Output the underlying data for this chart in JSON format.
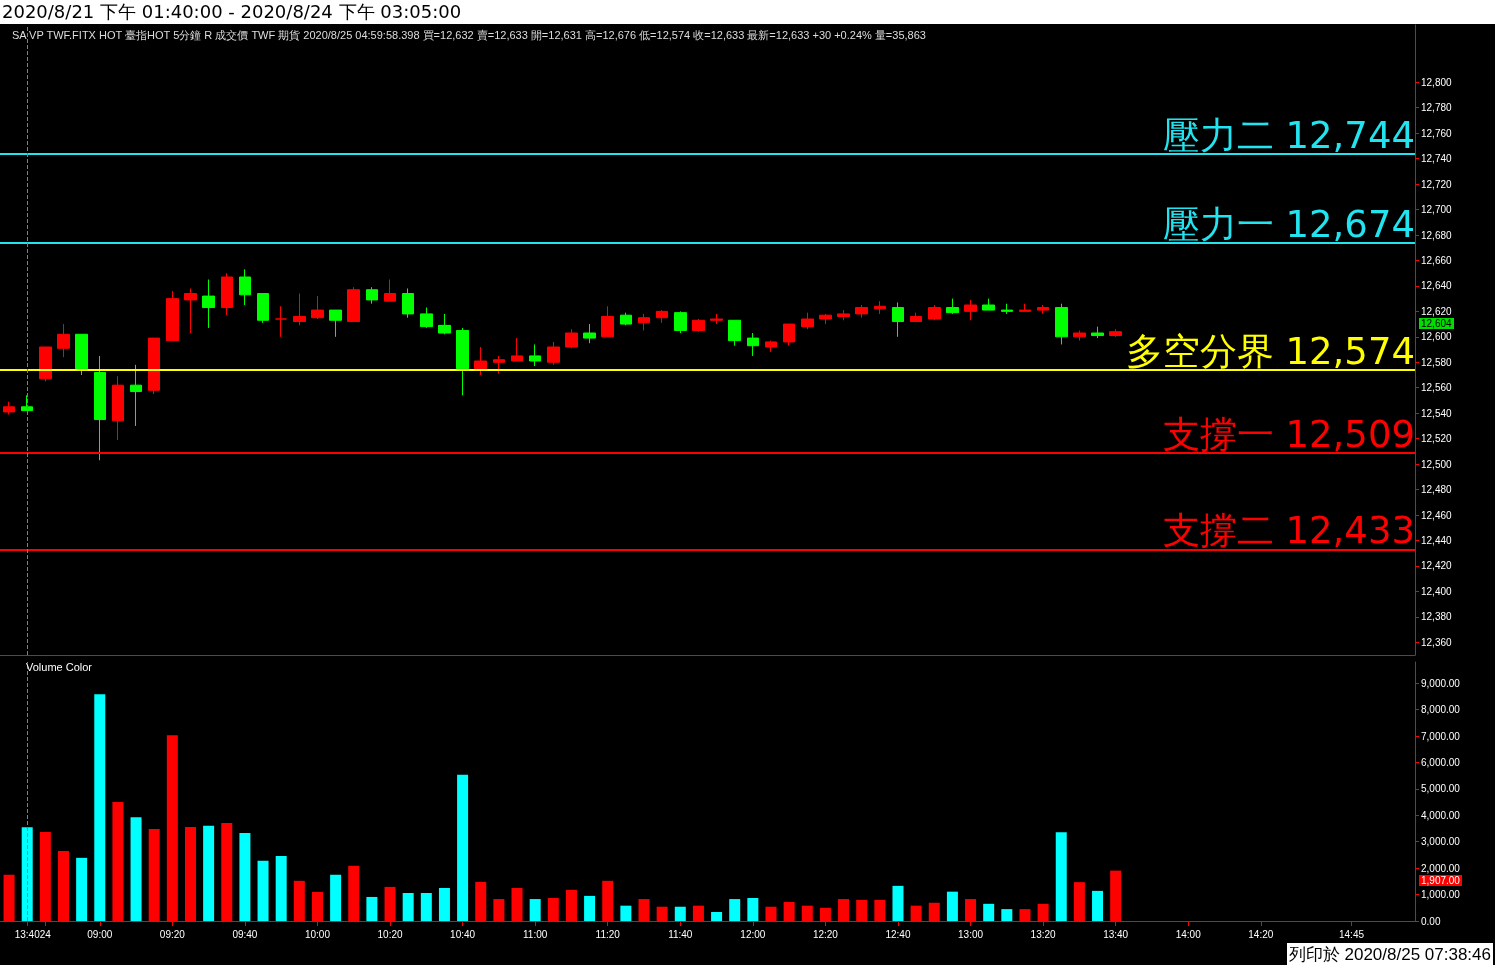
{
  "chart_data": [
    {
      "type": "candlestick",
      "title": "2020/8/21 下午 01:40:00 - 2020/8/24 下午 03:05:00",
      "categories": [
        null,
        "13:40",
        "24",
        null,
        null,
        "09:00",
        null,
        null,
        null,
        "09:20",
        null,
        null,
        null,
        "09:40",
        null,
        null,
        null,
        "10:00",
        null,
        null,
        null,
        "10:20",
        null,
        null,
        null,
        "10:40",
        null,
        null,
        null,
        "11:00",
        null,
        null,
        null,
        "11:20",
        null,
        null,
        null,
        "11:40",
        null,
        null,
        null,
        "12:00",
        null,
        null,
        null,
        "12:20",
        null,
        null,
        null,
        "12:40",
        null,
        null,
        null,
        "13:00",
        null,
        null,
        null,
        "13:20",
        null,
        null,
        null,
        "13:40",
        null,
        null,
        null,
        "14:00",
        null,
        null,
        null,
        "14:20",
        null,
        null,
        null,
        null,
        "14:45",
        null,
        null,
        null
      ],
      "ohlc": [
        [
          12541,
          12549,
          12539,
          12545
        ],
        [
          12545,
          12554,
          12542,
          12542
        ],
        [
          12567,
          12592,
          12565,
          12592
        ],
        [
          12591,
          12610,
          12584,
          12602
        ],
        [
          12602,
          12602,
          12570,
          12575
        ],
        [
          12572,
          12585,
          12503,
          12535
        ],
        [
          12534,
          12569,
          12519,
          12562
        ],
        [
          12562,
          12578,
          12530,
          12557
        ],
        [
          12558,
          12599,
          12555,
          12599
        ],
        [
          12597,
          12636,
          12597,
          12630
        ],
        [
          12629,
          12638,
          12603,
          12634
        ],
        [
          12632,
          12645,
          12607,
          12623
        ],
        [
          12623,
          12650,
          12617,
          12647
        ],
        [
          12647,
          12653,
          12625,
          12633
        ],
        [
          12634,
          12634,
          12611,
          12613
        ],
        [
          12614,
          12624,
          12600,
          12614
        ],
        [
          12612,
          12634,
          12609,
          12616
        ],
        [
          12615,
          12632,
          12614,
          12621
        ],
        [
          12621,
          12621,
          12600,
          12613
        ],
        [
          12612,
          12639,
          12612,
          12637
        ],
        [
          12637,
          12639,
          12626,
          12629
        ],
        [
          12628,
          12645,
          12628,
          12634
        ],
        [
          12634,
          12638,
          12615,
          12618
        ],
        [
          12618,
          12623,
          12607,
          12608
        ],
        [
          12609,
          12618,
          12602,
          12603
        ],
        [
          12605,
          12607,
          12554,
          12575
        ],
        [
          12575,
          12592,
          12570,
          12581
        ],
        [
          12580,
          12585,
          12571,
          12582
        ],
        [
          12581,
          12599,
          12581,
          12585
        ],
        [
          12585,
          12594,
          12577,
          12581
        ],
        [
          12580,
          12596,
          12578,
          12592
        ],
        [
          12592,
          12606,
          12591,
          12603
        ],
        [
          12603,
          12610,
          12595,
          12599
        ],
        [
          12600,
          12624,
          12600,
          12616
        ],
        [
          12617,
          12619,
          12609,
          12610
        ],
        [
          12611,
          12618,
          12605,
          12615
        ],
        [
          12615,
          12621,
          12611,
          12620
        ],
        [
          12619,
          12620,
          12603,
          12605
        ],
        [
          12605,
          12614,
          12604,
          12613
        ],
        [
          12613,
          12618,
          12610,
          12614
        ],
        [
          12613,
          12613,
          12593,
          12597
        ],
        [
          12599,
          12603,
          12585,
          12593
        ],
        [
          12592,
          12597,
          12588,
          12596
        ],
        [
          12596,
          12610,
          12593,
          12610
        ],
        [
          12608,
          12619,
          12606,
          12614
        ],
        [
          12614,
          12618,
          12610,
          12617
        ],
        [
          12616,
          12621,
          12613,
          12618
        ],
        [
          12618,
          12625,
          12615,
          12623
        ],
        [
          12622,
          12628,
          12618,
          12624
        ],
        [
          12623,
          12627,
          12600,
          12612
        ],
        [
          12612,
          12619,
          12612,
          12616
        ],
        [
          12614,
          12625,
          12613,
          12623
        ],
        [
          12623,
          12630,
          12618,
          12619
        ],
        [
          12620,
          12629,
          12613,
          12625
        ],
        [
          12625,
          12630,
          12621,
          12621
        ],
        [
          12621,
          12626,
          12618,
          12620
        ],
        [
          12620,
          12626,
          12620,
          12621
        ],
        [
          12621,
          12625,
          12618,
          12623
        ],
        [
          12623,
          12626,
          12594,
          12600
        ],
        [
          12600,
          12605,
          12597,
          12603
        ],
        [
          12603,
          12608,
          12599,
          12601
        ],
        [
          12601,
          12606,
          12600,
          12604
        ],
        null,
        null,
        null,
        null,
        null,
        null,
        null,
        null,
        null,
        null,
        null,
        null,
        null,
        null,
        null,
        null
      ],
      "colors": [
        "#ff0000",
        "#00ff00",
        "#ff0000",
        "#ff0000",
        "#00ff00",
        "#00ff00",
        "#ff0000",
        "#00ff00",
        "#ff0000",
        "#ff0000",
        "#ff0000",
        "#00ff00",
        "#ff0000",
        "#00ff00",
        "#00ff00",
        "#ff0000",
        "#ff0000",
        "#ff0000",
        "#00ff00",
        "#ff0000",
        "#00ff00",
        "#ff0000",
        "#00ff00",
        "#00ff00",
        "#00ff00",
        "#00ff00",
        "#ff0000",
        "#ff0000",
        "#ff0000",
        "#00ff00",
        "#ff0000",
        "#ff0000",
        "#00ff00",
        "#ff0000",
        "#00ff00",
        "#ff0000",
        "#ff0000",
        "#00ff00",
        "#ff0000",
        "#ff0000",
        "#00ff00",
        "#00ff00",
        "#ff0000",
        "#ff0000",
        "#ff0000",
        "#ff0000",
        "#ff0000",
        "#ff0000",
        "#ff0000",
        "#00ff00",
        "#ff0000",
        "#ff0000",
        "#00ff00",
        "#ff0000",
        "#00ff00",
        "#00ff00",
        "#ff0000",
        "#ff0000",
        "#00ff00",
        "#ff0000",
        "#00ff00",
        "#ff0000",
        null,
        null,
        null,
        null,
        null,
        null,
        null,
        null,
        null,
        null,
        null,
        null,
        null,
        null,
        null,
        null
      ],
      "ylim": [
        12350,
        12845
      ],
      "yticks": [
        {
          "value": 12360,
          "label": "12,360"
        },
        {
          "value": 12380,
          "label": "12,380"
        },
        {
          "value": 12400,
          "label": "12,400"
        },
        {
          "value": 12420,
          "label": "12,420"
        },
        {
          "value": 12440,
          "label": "12,440"
        },
        {
          "value": 12460,
          "label": "12,460"
        },
        {
          "value": 12480,
          "label": "12,480"
        },
        {
          "value": 12500,
          "label": "12,500"
        },
        {
          "value": 12520,
          "label": "12,520"
        },
        {
          "value": 12540,
          "label": "12,540"
        },
        {
          "value": 12560,
          "label": "12,560"
        },
        {
          "value": 12580,
          "label": "12,580"
        },
        {
          "value": 12600,
          "label": "12,600"
        },
        {
          "value": 12620,
          "label": "12,620"
        },
        {
          "value": 12640,
          "label": "12,640"
        },
        {
          "value": 12660,
          "label": "12,660"
        },
        {
          "value": 12680,
          "label": "12,680"
        },
        {
          "value": 12700,
          "label": "12,700"
        },
        {
          "value": 12720,
          "label": "12,720"
        },
        {
          "value": 12740,
          "label": "12,740"
        },
        {
          "value": 12760,
          "label": "12,760"
        },
        {
          "value": 12780,
          "label": "12,780"
        },
        {
          "value": 12800,
          "label": "12,800"
        }
      ],
      "ref_lines": [
        {
          "axis": "y",
          "value": 12744,
          "label": "壓力二 12,744",
          "color": "#22e4f0"
        },
        {
          "axis": "y",
          "value": 12674,
          "label": "壓力一 12,674",
          "color": "#22e4f0"
        },
        {
          "axis": "y",
          "value": 12574,
          "label": "多空分界 12,574",
          "color": "#ffff00"
        },
        {
          "axis": "y",
          "value": 12509,
          "label": "支撐一 12,509",
          "color": "#ff0000"
        },
        {
          "axis": "y",
          "value": 12433,
          "label": "支撐二 12,433",
          "color": "#ff0000"
        },
        {
          "axis": "x",
          "value": "13:40",
          "color": "#808080",
          "line_style": "dashed"
        }
      ],
      "annotations": [
        "SA VP TWF.FITX HOT 臺指HOT 5分鐘 R 成交價 TWF 期貨 2020/8/25 04:59:58.398 買=12,632 賣=12,633 開=12,631 高=12,676 低=12,574 收=12,633 最新=12,633 +30 +0.24% 量=35,863",
        "12,604"
      ],
      "tick_labels": "y",
      "grid": false
    },
    {
      "type": "bar",
      "categories": [
        null,
        "13:40",
        "24",
        null,
        null,
        "09:00",
        null,
        null,
        null,
        "09:20",
        null,
        null,
        null,
        "09:40",
        null,
        null,
        null,
        "10:00",
        null,
        null,
        null,
        "10:20",
        null,
        null,
        null,
        "10:40",
        null,
        null,
        null,
        "11:00",
        null,
        null,
        null,
        "11:20",
        null,
        null,
        null,
        "11:40",
        null,
        null,
        null,
        "12:00",
        null,
        null,
        null,
        "12:20",
        null,
        null,
        null,
        "12:40",
        null,
        null,
        null,
        "13:00",
        null,
        null,
        null,
        "13:20",
        null,
        null,
        null,
        "13:40",
        null,
        null,
        null,
        "14:00",
        null,
        null,
        null,
        "14:20",
        null,
        null,
        null,
        null,
        "14:45",
        null,
        null,
        null
      ],
      "values": [
        1750,
        3550,
        3370,
        2650,
        2390,
        8580,
        4500,
        3930,
        3480,
        7030,
        3560,
        3600,
        3710,
        3330,
        2280,
        2460,
        1520,
        1100,
        1750,
        2090,
        910,
        1290,
        1060,
        1060,
        1250,
        5530,
        1480,
        830,
        1250,
        830,
        870,
        1180,
        950,
        1520,
        580,
        830,
        540,
        540,
        580,
        340,
        830,
        870,
        540,
        720,
        580,
        500,
        830,
        800,
        800,
        1330,
        580,
        690,
        1110,
        830,
        650,
        450,
        450,
        650,
        3360,
        1470,
        1140,
        1907,
        null,
        null,
        null,
        null,
        null,
        null,
        null,
        null,
        null,
        null,
        null,
        null,
        null,
        null,
        null,
        null
      ],
      "colors": [
        "#ff0000",
        "#00ffff",
        "#ff0000",
        "#ff0000",
        "#00ffff",
        "#00ffff",
        "#ff0000",
        "#00ffff",
        "#ff0000",
        "#ff0000",
        "#ff0000",
        "#00ffff",
        "#ff0000",
        "#00ffff",
        "#00ffff",
        "#00ffff",
        "#ff0000",
        "#ff0000",
        "#00ffff",
        "#ff0000",
        "#00ffff",
        "#ff0000",
        "#00ffff",
        "#00ffff",
        "#00ffff",
        "#00ffff",
        "#ff0000",
        "#ff0000",
        "#ff0000",
        "#00ffff",
        "#ff0000",
        "#ff0000",
        "#00ffff",
        "#ff0000",
        "#00ffff",
        "#ff0000",
        "#ff0000",
        "#00ffff",
        "#ff0000",
        "#00ffff",
        "#00ffff",
        "#00ffff",
        "#ff0000",
        "#ff0000",
        "#ff0000",
        "#ff0000",
        "#ff0000",
        "#ff0000",
        "#ff0000",
        "#00ffff",
        "#ff0000",
        "#ff0000",
        "#00ffff",
        "#ff0000",
        "#00ffff",
        "#00ffff",
        "#ff0000",
        "#ff0000",
        "#00ffff",
        "#ff0000",
        "#00ffff",
        "#ff0000",
        null,
        null,
        null,
        null,
        null,
        null,
        null,
        null,
        null,
        null,
        null,
        null,
        null,
        null,
        null,
        null
      ],
      "ylim": [
        0,
        9800
      ],
      "yticks": [
        {
          "value": 0,
          "label": "0.00"
        },
        {
          "value": 1000,
          "label": "1,000.00"
        },
        {
          "value": 2000,
          "label": "2,000.00"
        },
        {
          "value": 3000,
          "label": "3,000.00"
        },
        {
          "value": 4000,
          "label": "4,000.00"
        },
        {
          "value": 5000,
          "label": "5,000.00"
        },
        {
          "value": 6000,
          "label": "6,000.00"
        },
        {
          "value": 7000,
          "label": "7,000.00"
        },
        {
          "value": 8000,
          "label": "8,000.00"
        },
        {
          "value": 9000,
          "label": "9,000.00"
        }
      ],
      "ref_lines": [
        {
          "axis": "x",
          "value": "13:40",
          "color": "#808080",
          "line_style": "dashed"
        }
      ],
      "annotations": [
        "Volume Color",
        "1,907.00",
        "列印於 2020/8/25 07:38:46"
      ],
      "grid": false
    }
  ]
}
